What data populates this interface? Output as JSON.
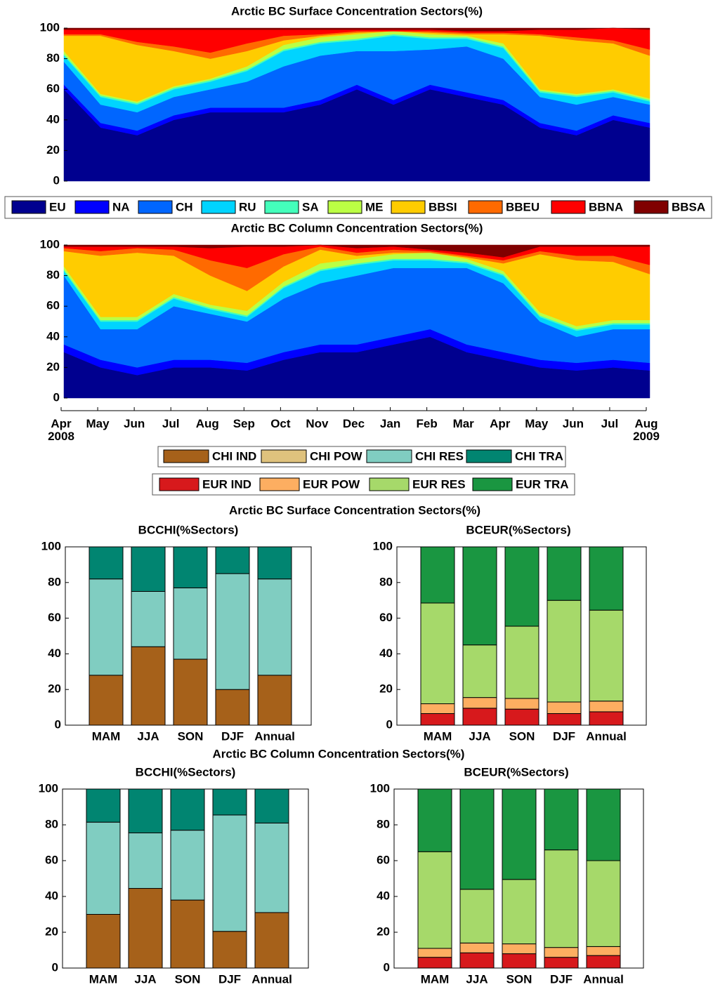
{
  "chart_data": [
    {
      "type": "area",
      "title": "Arctic BC Surface Concentration Sectors(%)",
      "x": [
        "2008-04",
        "2008-05",
        "2008-06",
        "2008-07",
        "2008-08",
        "2008-09",
        "2008-10",
        "2008-11",
        "2008-12",
        "2009-01",
        "2009-02",
        "2009-03",
        "2009-04",
        "2009-05",
        "2009-06",
        "2009-07",
        "2009-08"
      ],
      "ylim": [
        0,
        100
      ],
      "yticks": [
        0,
        20,
        40,
        60,
        80,
        100
      ],
      "series": [
        {
          "name": "EU",
          "color": "#00008f",
          "values": [
            60,
            35,
            30,
            40,
            45,
            45,
            45,
            50,
            60,
            50,
            60,
            55,
            50,
            35,
            30,
            40,
            35
          ]
        },
        {
          "name": "NA",
          "color": "#0000ff",
          "values": [
            3,
            3,
            3,
            3,
            3,
            3,
            3,
            3,
            3,
            3,
            3,
            3,
            3,
            3,
            3,
            3,
            3
          ]
        },
        {
          "name": "CH",
          "color": "#0066ff",
          "values": [
            15,
            12,
            12,
            12,
            12,
            17,
            27,
            29,
            22,
            32,
            23,
            30,
            27,
            17,
            17,
            12,
            12
          ]
        },
        {
          "name": "RU",
          "color": "#00d4ff",
          "values": [
            4,
            5,
            5,
            5,
            5,
            7,
            10,
            8,
            7,
            10,
            7,
            5,
            7,
            3,
            5,
            3,
            2
          ]
        },
        {
          "name": "SA",
          "color": "#44ffbb",
          "values": [
            1,
            1,
            1,
            1,
            1,
            1,
            1,
            1,
            1,
            1,
            1,
            1,
            1,
            1,
            1,
            1,
            1
          ]
        },
        {
          "name": "ME",
          "color": "#bbff44",
          "values": [
            2,
            1,
            1,
            1,
            1,
            2,
            3,
            3,
            3,
            2,
            2,
            1,
            2,
            1,
            1,
            1,
            1
          ]
        },
        {
          "name": "BBSI",
          "color": "#ffcc00",
          "values": [
            10,
            38,
            37,
            23,
            13,
            10,
            3,
            1,
            1,
            0,
            1,
            1,
            6,
            35,
            35,
            30,
            28
          ]
        },
        {
          "name": "BBEU",
          "color": "#ff6a00",
          "values": [
            1,
            1,
            2,
            3,
            4,
            5,
            3,
            1,
            1,
            0,
            1,
            1,
            1,
            1,
            2,
            2,
            4
          ]
        },
        {
          "name": "BBNA",
          "color": "#ff0000",
          "values": [
            3,
            3,
            8,
            11,
            15,
            9,
            4,
            3,
            1,
            1,
            1,
            1,
            1,
            3,
            5,
            8,
            13
          ]
        },
        {
          "name": "BBSA",
          "color": "#800000",
          "values": [
            1,
            1,
            1,
            1,
            1,
            1,
            1,
            1,
            1,
            1,
            1,
            2,
            2,
            1,
            1,
            0,
            1
          ]
        }
      ]
    },
    {
      "type": "area",
      "title": "Arctic BC Column Concentration Sectors(%)",
      "x": [
        "2008-04",
        "2008-05",
        "2008-06",
        "2008-07",
        "2008-08",
        "2008-09",
        "2008-10",
        "2008-11",
        "2008-12",
        "2009-01",
        "2009-02",
        "2009-03",
        "2009-04",
        "2009-05",
        "2009-06",
        "2009-07",
        "2009-08"
      ],
      "xticks": [
        {
          "value": "2008-04",
          "label": "Apr 2008"
        },
        {
          "value": "2008-05",
          "label": "May"
        },
        {
          "value": "2008-06",
          "label": "Jun"
        },
        {
          "value": "2008-07",
          "label": "Jul"
        },
        {
          "value": "2008-08",
          "label": "Aug"
        },
        {
          "value": "2008-09",
          "label": "Sep"
        },
        {
          "value": "2008-10",
          "label": "Oct"
        },
        {
          "value": "2008-11",
          "label": "Nov"
        },
        {
          "value": "2008-12",
          "label": "Dec"
        },
        {
          "value": "2009-01",
          "label": "Jan"
        },
        {
          "value": "2009-02",
          "label": "Feb"
        },
        {
          "value": "2009-03",
          "label": "Mar"
        },
        {
          "value": "2009-04",
          "label": "Apr"
        },
        {
          "value": "2009-05",
          "label": "May"
        },
        {
          "value": "2009-06",
          "label": "Jun"
        },
        {
          "value": "2009-07",
          "label": "Jul"
        },
        {
          "value": "2009-08",
          "label": "Aug 2009"
        }
      ],
      "ylim": [
        0,
        100
      ],
      "yticks": [
        0,
        20,
        40,
        60,
        80,
        100
      ],
      "series": [
        {
          "name": "EU",
          "color": "#00008f",
          "values": [
            30,
            20,
            15,
            20,
            20,
            18,
            25,
            30,
            30,
            35,
            40,
            30,
            25,
            20,
            18,
            20,
            18
          ]
        },
        {
          "name": "NA",
          "color": "#0000ff",
          "values": [
            5,
            5,
            5,
            5,
            5,
            5,
            5,
            5,
            5,
            5,
            5,
            5,
            5,
            5,
            5,
            5,
            5
          ]
        },
        {
          "name": "CH",
          "color": "#0066ff",
          "values": [
            45,
            20,
            25,
            35,
            30,
            27,
            35,
            40,
            45,
            45,
            40,
            50,
            45,
            25,
            17,
            20,
            22
          ]
        },
        {
          "name": "RU",
          "color": "#00d4ff",
          "values": [
            3,
            5,
            5,
            5,
            3,
            3,
            7,
            8,
            7,
            5,
            5,
            3,
            5,
            3,
            4,
            3,
            3
          ]
        },
        {
          "name": "SA",
          "color": "#44ffbb",
          "values": [
            1,
            1,
            1,
            1,
            1,
            1,
            1,
            1,
            1,
            1,
            1,
            1,
            1,
            1,
            1,
            1,
            1
          ]
        },
        {
          "name": "ME",
          "color": "#bbff44",
          "values": [
            2,
            2,
            2,
            2,
            2,
            3,
            3,
            4,
            3,
            3,
            4,
            2,
            2,
            2,
            2,
            2,
            2
          ]
        },
        {
          "name": "BBSI",
          "color": "#ffcc00",
          "values": [
            10,
            40,
            42,
            25,
            19,
            13,
            10,
            9,
            2,
            1,
            0,
            1,
            5,
            38,
            43,
            38,
            30
          ]
        },
        {
          "name": "BBEU",
          "color": "#ff6a00",
          "values": [
            2,
            3,
            3,
            4,
            10,
            15,
            8,
            2,
            2,
            2,
            1,
            1,
            2,
            2,
            3,
            4,
            6
          ]
        },
        {
          "name": "BBNA",
          "color": "#ff0000",
          "values": [
            1,
            3,
            1,
            2,
            8,
            14,
            5,
            1,
            3,
            2,
            1,
            2,
            2,
            3,
            6,
            6,
            12
          ]
        },
        {
          "name": "BBSA",
          "color": "#800000",
          "values": [
            1,
            1,
            1,
            1,
            2,
            1,
            1,
            0,
            2,
            1,
            3,
            5,
            8,
            1,
            1,
            1,
            1
          ]
        }
      ]
    },
    {
      "type": "stacked_bar",
      "title": "BCCHI(%Sectors)",
      "categories": [
        "MAM",
        "JJA",
        "SON",
        "DJF",
        "Annual"
      ],
      "ylim": [
        0,
        100
      ],
      "yticks": [
        0,
        20,
        40,
        60,
        80,
        100
      ],
      "series": [
        {
          "name": "CHI IND",
          "color": "#a6611a",
          "values": [
            28,
            44,
            37,
            20,
            28
          ]
        },
        {
          "name": "CHI POW",
          "color": "#dfc27d",
          "values": [
            0,
            0,
            0,
            0,
            0
          ]
        },
        {
          "name": "CHI RES",
          "color": "#80cdc1",
          "values": [
            54,
            31,
            40,
            65,
            54
          ]
        },
        {
          "name": "CHI TRA",
          "color": "#018571",
          "values": [
            18,
            25,
            23,
            15,
            18
          ]
        }
      ]
    },
    {
      "type": "stacked_bar",
      "title": "BCEUR(%Sectors)",
      "categories": [
        "MAM",
        "JJA",
        "SON",
        "DJF",
        "Annual"
      ],
      "ylim": [
        0,
        100
      ],
      "yticks": [
        0,
        20,
        40,
        60,
        80,
        100
      ],
      "series": [
        {
          "name": "EUR IND",
          "color": "#d7191c",
          "values": [
            6.5,
            9.5,
            9,
            6.5,
            7.5
          ]
        },
        {
          "name": "EUR POW",
          "color": "#fdae61",
          "values": [
            5.5,
            6,
            6,
            6.5,
            6
          ]
        },
        {
          "name": "EUR RES",
          "color": "#a6d96a",
          "values": [
            56.5,
            29.5,
            40.5,
            57,
            51
          ]
        },
        {
          "name": "EUR TRA",
          "color": "#1a9641",
          "values": [
            31.5,
            55,
            44.5,
            30,
            35.5
          ]
        }
      ]
    },
    {
      "type": "stacked_bar",
      "title": "BCCHI(%Sectors)",
      "categories": [
        "MAM",
        "JJA",
        "SON",
        "DJF",
        "Annual"
      ],
      "ylim": [
        0,
        100
      ],
      "yticks": [
        0,
        20,
        40,
        60,
        80,
        100
      ],
      "series": [
        {
          "name": "CHI IND",
          "color": "#a6611a",
          "values": [
            30,
            44.5,
            38,
            20.5,
            31
          ]
        },
        {
          "name": "CHI POW",
          "color": "#dfc27d",
          "values": [
            0,
            0,
            0,
            0,
            0
          ]
        },
        {
          "name": "CHI RES",
          "color": "#80cdc1",
          "values": [
            51.5,
            31,
            39,
            65,
            50
          ]
        },
        {
          "name": "CHI TRA",
          "color": "#018571",
          "values": [
            18.5,
            24.5,
            23,
            14.5,
            19
          ]
        }
      ]
    },
    {
      "type": "stacked_bar",
      "title": "BCEUR(%Sectors)",
      "categories": [
        "MAM",
        "JJA",
        "SON",
        "DJF",
        "Annual"
      ],
      "ylim": [
        0,
        100
      ],
      "yticks": [
        0,
        20,
        40,
        60,
        80,
        100
      ],
      "series": [
        {
          "name": "EUR IND",
          "color": "#d7191c",
          "values": [
            6,
            8.5,
            8,
            6,
            7
          ]
        },
        {
          "name": "EUR POW",
          "color": "#fdae61",
          "values": [
            5,
            5.5,
            5.5,
            5.5,
            5
          ]
        },
        {
          "name": "EUR RES",
          "color": "#a6d96a",
          "values": [
            54,
            30,
            36,
            54.5,
            48
          ]
        },
        {
          "name": "EUR TRA",
          "color": "#1a9641",
          "values": [
            35,
            56,
            50.5,
            34,
            40
          ]
        }
      ]
    }
  ],
  "headings": [
    "Arctic BC Surface Concentration Sectors(%)",
    "Arctic BC Column Concentration Sectors(%)"
  ]
}
